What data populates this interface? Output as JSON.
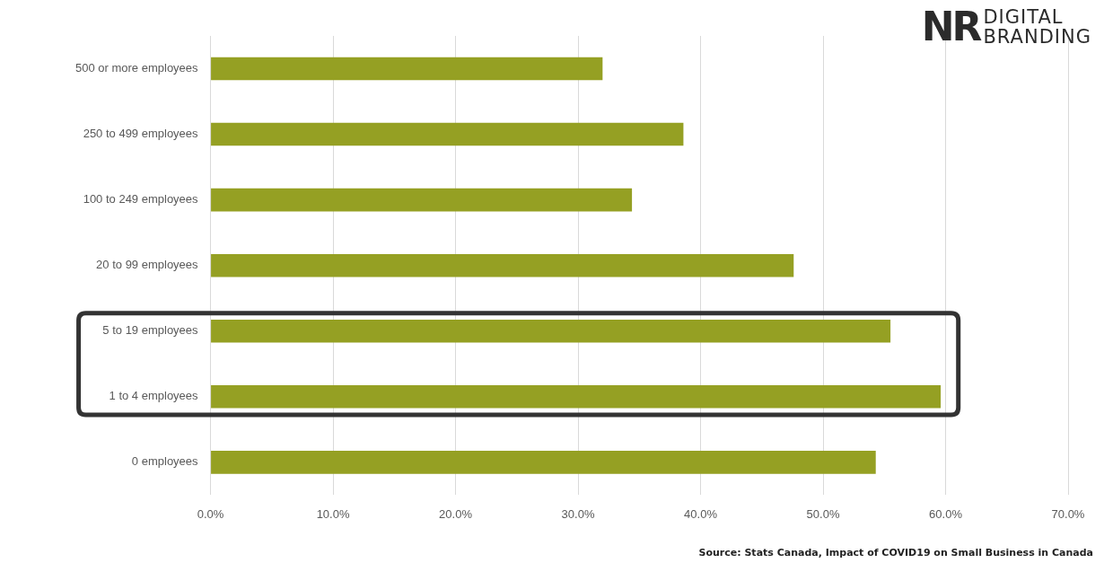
{
  "chart_data": {
    "type": "bar",
    "orientation": "horizontal",
    "categories": [
      "500 or more employees",
      "250 to 499 employees",
      "100 to 249 employees",
      "20 to 99 employees",
      "5 to 19 employees",
      "1 to 4 employees",
      "0 employees"
    ],
    "values": [
      32.0,
      38.6,
      34.4,
      47.6,
      55.5,
      59.6,
      54.3
    ],
    "color": "#95a023",
    "xlim": [
      0,
      70
    ],
    "xticks": [
      {
        "value": 0,
        "label": "0.0%"
      },
      {
        "value": 10,
        "label": "10.0%"
      },
      {
        "value": 20,
        "label": "20.0%"
      },
      {
        "value": 30,
        "label": "30.0%"
      },
      {
        "value": 40,
        "label": "40.0%"
      },
      {
        "value": 50,
        "label": "50.0%"
      },
      {
        "value": 60,
        "label": "60.0%"
      },
      {
        "value": 70,
        "label": "70.0%"
      }
    ],
    "grid": true,
    "annotations": [
      "NR",
      "DIGITAL",
      "BRANDING",
      "Source: Stats Canada, Impact of COVID19 on Small Business in Canada"
    ]
  }
}
